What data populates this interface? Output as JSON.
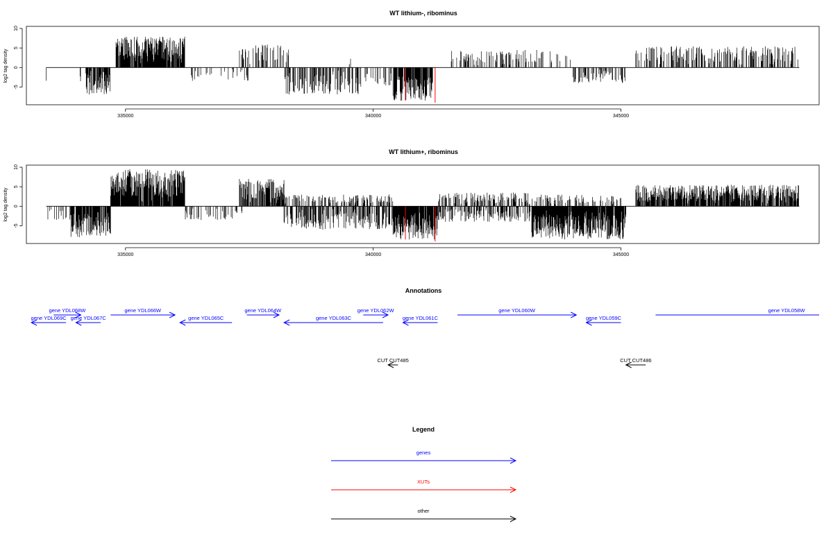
{
  "colors": {
    "genes": "#0000ff",
    "xuts": "#ff0000",
    "other": "#000000"
  },
  "chart_data": [
    {
      "type": "bar",
      "title": "WT lithium-, ribominus",
      "ylabel": "log2 tag density",
      "xlim": [
        333000,
        349000
      ],
      "ylim": [
        -9,
        10
      ],
      "xticks": [
        335000,
        340000,
        345000
      ],
      "yticks": [
        -5,
        0,
        5,
        10
      ],
      "baseline_range": [
        333400,
        348600
      ],
      "segments": [
        {
          "start": 333400,
          "end": 333900,
          "sign": -1,
          "max": 3.5,
          "density": 0.05
        },
        {
          "start": 333900,
          "end": 334200,
          "sign": -1,
          "max": 3.5,
          "density": 0.08
        },
        {
          "start": 334200,
          "end": 334700,
          "sign": -1,
          "max": 7,
          "density": 0.8
        },
        {
          "start": 334800,
          "end": 336200,
          "sign": 1,
          "max": 8,
          "density": 0.9
        },
        {
          "start": 336200,
          "end": 337500,
          "sign": -1,
          "max": 3.5,
          "density": 0.1
        },
        {
          "start": 337300,
          "end": 338300,
          "sign": 1,
          "max": 6,
          "density": 0.4
        },
        {
          "start": 338200,
          "end": 339700,
          "sign": -1,
          "max": 7,
          "density": 0.5
        },
        {
          "start": 339400,
          "end": 339600,
          "sign": 1,
          "max": 2.5,
          "density": 0.05
        },
        {
          "start": 339700,
          "end": 340400,
          "sign": -1,
          "max": 5,
          "density": 0.3
        },
        {
          "start": 340400,
          "end": 341200,
          "sign": -1,
          "max": 8.5,
          "density": 0.9
        },
        {
          "start": 341500,
          "end": 344000,
          "sign": 1,
          "max": 4.5,
          "density": 0.3
        },
        {
          "start": 344000,
          "end": 345100,
          "sign": -1,
          "max": 4,
          "density": 0.4
        },
        {
          "start": 345300,
          "end": 348600,
          "sign": 1,
          "max": 5.5,
          "density": 0.4
        }
      ],
      "highlights": [
        {
          "x": 340650,
          "y": -8.5
        },
        {
          "x": 341250,
          "y": -9
        }
      ]
    },
    {
      "type": "bar",
      "title": "WT lithium+, ribominus",
      "ylabel": "log2 tag density",
      "xlim": [
        333000,
        349000
      ],
      "ylim": [
        -9,
        10
      ],
      "xticks": [
        335000,
        340000,
        345000
      ],
      "yticks": [
        -5,
        0,
        5,
        10
      ],
      "baseline_range": [
        333400,
        348600
      ],
      "segments": [
        {
          "start": 333400,
          "end": 333900,
          "sign": -1,
          "max": 3.5,
          "density": 0.3
        },
        {
          "start": 333900,
          "end": 334700,
          "sign": -1,
          "max": 8,
          "density": 0.9
        },
        {
          "start": 334700,
          "end": 336200,
          "sign": 1,
          "max": 9.5,
          "density": 0.95
        },
        {
          "start": 336200,
          "end": 337400,
          "sign": -1,
          "max": 3.5,
          "density": 0.35
        },
        {
          "start": 337300,
          "end": 338200,
          "sign": 1,
          "max": 7,
          "density": 0.8
        },
        {
          "start": 338200,
          "end": 340400,
          "sign": -1,
          "max": 6,
          "density": 0.55
        },
        {
          "start": 338200,
          "end": 340400,
          "sign": 1,
          "max": 3,
          "density": 0.35
        },
        {
          "start": 340400,
          "end": 341300,
          "sign": -1,
          "max": 8.5,
          "density": 0.95
        },
        {
          "start": 341300,
          "end": 343200,
          "sign": -1,
          "max": 4,
          "density": 0.5
        },
        {
          "start": 341300,
          "end": 343200,
          "sign": 1,
          "max": 3.5,
          "density": 0.4
        },
        {
          "start": 343200,
          "end": 345100,
          "sign": -1,
          "max": 8.5,
          "density": 0.95
        },
        {
          "start": 343200,
          "end": 345000,
          "sign": 1,
          "max": 3,
          "density": 0.3
        },
        {
          "start": 345300,
          "end": 348600,
          "sign": 1,
          "max": 5.5,
          "density": 0.85
        }
      ],
      "highlights": [
        {
          "x": 340650,
          "y": -8.5
        },
        {
          "x": 341250,
          "y": -9
        }
      ]
    }
  ],
  "annotations": {
    "title": "Annotations",
    "features": [
      {
        "label": "gene YDL068W",
        "start": 333550,
        "end": 334100,
        "strand": "+",
        "type": "gene",
        "row": 0
      },
      {
        "label": "gene YDL069C",
        "start": 333100,
        "end": 333800,
        "strand": "-",
        "type": "gene",
        "row": 1
      },
      {
        "label": "gene YDL067C",
        "start": 334000,
        "end": 334500,
        "strand": "-",
        "type": "gene",
        "row": 1
      },
      {
        "label": "gene YDL066W",
        "start": 334700,
        "end": 336000,
        "strand": "+",
        "type": "gene",
        "row": 0
      },
      {
        "label": "gene YDL065C",
        "start": 336100,
        "end": 337150,
        "strand": "-",
        "type": "gene",
        "row": 1
      },
      {
        "label": "gene YDL064W",
        "start": 337450,
        "end": 338100,
        "strand": "+",
        "type": "gene",
        "row": 0
      },
      {
        "label": "gene YDL063C",
        "start": 338200,
        "end": 340200,
        "strand": "-",
        "type": "gene",
        "row": 1
      },
      {
        "label": "gene YDL062W",
        "start": 339800,
        "end": 340300,
        "strand": "+",
        "type": "gene",
        "row": 0
      },
      {
        "label": "gene YDL061C",
        "start": 340600,
        "end": 341300,
        "strand": "-",
        "type": "gene",
        "row": 1
      },
      {
        "label": "gene YDL060W",
        "start": 341700,
        "end": 344100,
        "strand": "+",
        "type": "gene",
        "row": 0
      },
      {
        "label": "gene YDL059C",
        "start": 344300,
        "end": 345000,
        "strand": "-",
        "type": "gene",
        "row": 1
      },
      {
        "label": "gene YDL058W",
        "start": 345700,
        "end": 349000,
        "strand": "+",
        "type": "gene",
        "row": 0
      },
      {
        "label": "CUT CUT485",
        "start": 340300,
        "end": 340500,
        "strand": "-",
        "type": "other",
        "row": 2
      },
      {
        "label": "CUT CUT486",
        "start": 345100,
        "end": 345500,
        "strand": "-",
        "type": "other",
        "row": 2
      }
    ]
  },
  "legend": {
    "title": "Legend",
    "entries": [
      {
        "label": "genes",
        "type": "genes"
      },
      {
        "label": "XUTs",
        "type": "xuts"
      },
      {
        "label": "other",
        "type": "other"
      }
    ]
  }
}
